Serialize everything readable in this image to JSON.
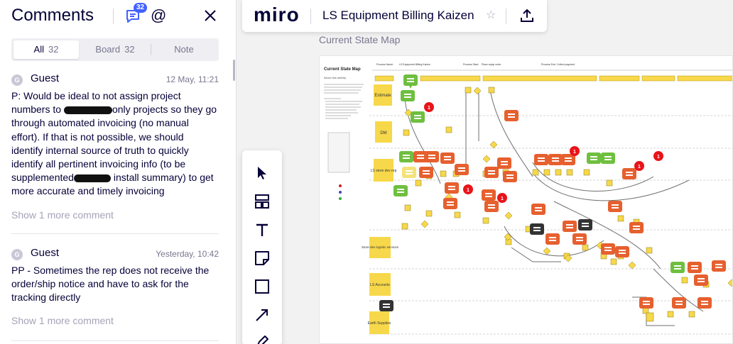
{
  "comments_panel": {
    "title": "Comments",
    "badge_count": "32",
    "mention_symbol": "@",
    "tabs": [
      {
        "label": "All",
        "count": "32"
      },
      {
        "label": "Board",
        "count": "32"
      },
      {
        "label": "Note",
        "count": ""
      }
    ],
    "comments": [
      {
        "avatar": "G",
        "author": "Guest",
        "date": "12 May, 11:21",
        "text_parts": [
          "P: Would be ideal to not assign project numbers to ",
          "only projects so they go through automated invoicing (no manual effort). If that is not possible, we should identify internal source of truth to quickly identify all pertinent invoicing info (to be supplemented",
          " install summary) to get more accurate and timely invoicing"
        ],
        "more": "Show 1 more comment"
      },
      {
        "avatar": "G",
        "author": "Guest",
        "date": "Yesterday, 10:42",
        "text_parts": [
          "PP - Sometimes the rep does not receive the order/ship notice and have to ask for the tracking directly"
        ],
        "more": "Show 1 more comment"
      }
    ]
  },
  "topbar": {
    "logo": "miro",
    "board_name": "LS Equipment Billing Kaizen",
    "star_glyph": "☆"
  },
  "canvas": {
    "frame_label": "Current State Map",
    "map": {
      "title": "Current State Map",
      "subtitle": "About this activity",
      "header_labels": [
        "Process Name:",
        "LS Equipment Billing Kaizen",
        "Process Start:",
        "Place equip order",
        "Process End:",
        "Collect payment"
      ],
      "lane_labels": [
        "Estimate",
        "DM",
        "LS store dev rep",
        "Store dev logistic services",
        "LS Accounts",
        "Earth Supplies"
      ],
      "comment_badges": [
        "1",
        "1",
        "1",
        "1",
        "1",
        "1"
      ]
    }
  },
  "colors": {
    "accent": "#4262ff",
    "sticky_yellow": "#f7d84a",
    "comment_orange": "#e6602f",
    "comment_green": "#6fbf3f",
    "comment_dark": "#333333",
    "badge_red": "#e8141a"
  },
  "toolbar": {
    "tools": [
      "select-icon",
      "templates-icon",
      "text-icon",
      "sticky-note-icon",
      "shape-icon",
      "connector-icon",
      "pen-icon"
    ]
  }
}
